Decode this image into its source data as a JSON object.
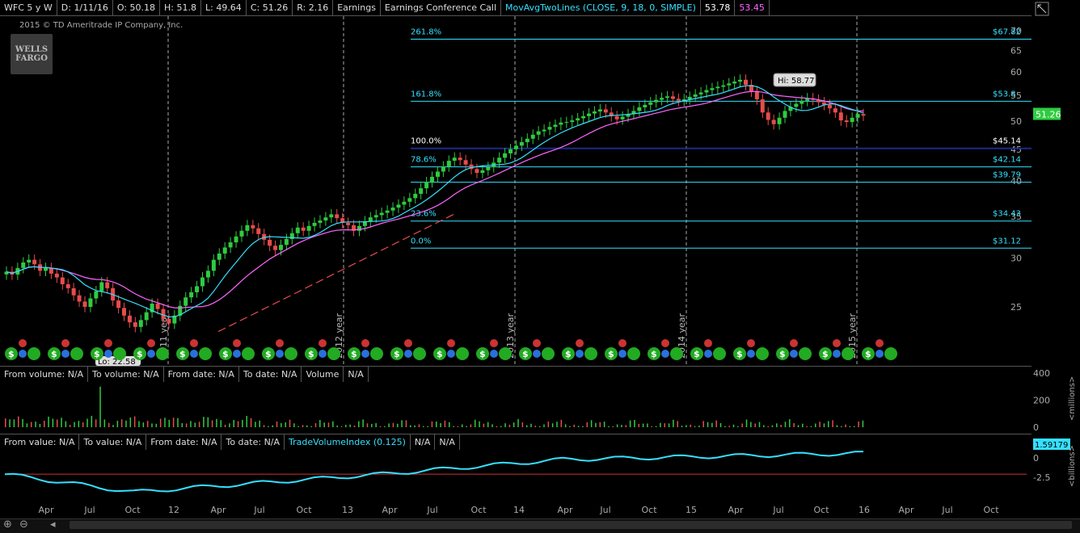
{
  "header": {
    "symbol": "WFC 5 y W",
    "date": "D: 1/11/16",
    "open": "O: 50.18",
    "high": "H: 51.8",
    "low": "L: 49.64",
    "close": "C: 51.26",
    "range": "R: 2.16",
    "earnings": "Earnings",
    "earnings_call": "Earnings Conference Call",
    "study": "MovAvgTwoLines (CLOSE, 9, 18, 0, SIMPLE)",
    "ma_fast": "53.78",
    "ma_slow": "53.45"
  },
  "copyright": "2015 © TD Ameritrade IP Company, Inc.",
  "logo": {
    "line1": "WELLS",
    "line2": "FARGO"
  },
  "volume_header": {
    "from_volume": "From volume: N/A",
    "to_volume": "To volume: N/A",
    "from_date": "From date: N/A",
    "to_date": "To date: N/A",
    "name": "Volume",
    "value": "N/A"
  },
  "tvi_header": {
    "from_value": "From value: N/A",
    "to_value": "To value: N/A",
    "from_date": "From date: N/A",
    "to_date": "To date: N/A",
    "name": "TradeVolumeIndex (0.125)",
    "v1": "N/A",
    "v2": "N/A"
  },
  "volume_unit_label": "<millions>",
  "tvi_unit_label": "<billions>",
  "tvi_last": "1.59179",
  "colors": {
    "background": "#000000",
    "up_candle": "#2ecc40",
    "down_candle": "#e74c4c",
    "ma_fast": "#35e0ff",
    "ma_slow": "#ff66ff",
    "fib": "#35e0ff",
    "fib_100": "#1a2a8a",
    "tvi": "#35e0ff",
    "dividend": "#22aa22",
    "earnings": "#cc3333",
    "call": "#2a6fdb"
  },
  "chart_data": [
    {
      "type": "candlestick",
      "name": "price",
      "x_labels": [
        "Apr",
        "Jul",
        "Oct",
        "12",
        "Apr",
        "Jul",
        "Oct",
        "13",
        "Apr",
        "Jul",
        "Oct",
        "14",
        "Apr",
        "Jul",
        "Oct",
        "15",
        "Apr",
        "Jul",
        "Oct",
        "16",
        "Apr",
        "Jul",
        "Oct"
      ],
      "y_ticks": [
        25,
        30,
        35,
        40,
        45,
        50,
        55,
        60,
        65,
        70
      ],
      "y_scale": "log",
      "last_price": "51.26",
      "high_marker": "Hi: 58.77",
      "low_marker": "Lo: 22.58",
      "year_markers": [
        "2011 year",
        "2012 year",
        "2013 year",
        "2014 year",
        "2015 year"
      ],
      "fibonacci": [
        {
          "pct": "261.8%",
          "price": "$67.82",
          "value": 67.82
        },
        {
          "pct": "161.8%",
          "price": "$53.8",
          "value": 53.8
        },
        {
          "pct": "100.0%",
          "price": "$45.14",
          "value": 45.14
        },
        {
          "pct": "78.6%",
          "price": "$42.14",
          "value": 42.14
        },
        {
          "pct": "",
          "price": "$39.79",
          "value": 39.79
        },
        {
          "pct": "23.6%",
          "price": "$34.43",
          "value": 34.43
        },
        {
          "pct": "0.0%",
          "price": "$31.12",
          "value": 31.12
        }
      ],
      "closes_approx": [
        28.5,
        28.2,
        28.9,
        29.5,
        29.8,
        29.3,
        28.6,
        28.9,
        28.3,
        27.9,
        27.2,
        26.8,
        26.1,
        25.5,
        25.0,
        25.8,
        26.5,
        27.4,
        26.8,
        25.6,
        24.9,
        24.2,
        23.6,
        23.2,
        23.8,
        24.5,
        25.3,
        24.8,
        23.9,
        23.5,
        24.2,
        25.1,
        25.9,
        26.4,
        27.0,
        27.9,
        28.6,
        29.8,
        30.5,
        31.2,
        31.8,
        32.5,
        33.2,
        33.9,
        33.5,
        32.8,
        32.1,
        31.4,
        30.9,
        31.5,
        32.2,
        32.9,
        33.6,
        33.2,
        33.8,
        34.2,
        34.5,
        34.9,
        35.3,
        34.8,
        34.2,
        33.9,
        33.2,
        33.8,
        34.4,
        34.9,
        35.2,
        35.5,
        35.8,
        36.2,
        36.6,
        37.0,
        37.5,
        38.1,
        38.9,
        39.8,
        40.6,
        41.4,
        42.2,
        43.1,
        43.6,
        43.2,
        42.5,
        41.8,
        41.2,
        41.6,
        42.1,
        42.8,
        43.6,
        44.3,
        45.0,
        45.6,
        46.2,
        46.8,
        47.5,
        48.1,
        48.4,
        48.9,
        49.3,
        49.7,
        49.8,
        50.1,
        50.5,
        50.9,
        51.4,
        51.8,
        52.2,
        51.6,
        50.9,
        50.3,
        50.8,
        51.3,
        51.9,
        52.6,
        53.1,
        53.6,
        54.1,
        54.5,
        54.8,
        54.3,
        53.9,
        54.2,
        54.7,
        55.2,
        55.6,
        56.1,
        56.5,
        56.8,
        57.1,
        57.5,
        57.9,
        58.3,
        57.2,
        55.8,
        54.2,
        51.6,
        50.2,
        49.4,
        50.6,
        51.9,
        52.7,
        53.3,
        53.9,
        54.4,
        54.1,
        53.6,
        53.1,
        52.4,
        51.6,
        50.1,
        49.8,
        50.6,
        51.3,
        51.0
      ]
    },
    {
      "type": "bar",
      "name": "volume",
      "y_ticks": [
        0,
        200,
        400
      ],
      "unit": "millions",
      "max_bar_value": 300
    },
    {
      "type": "line",
      "name": "TradeVolumeIndex",
      "y_ticks": [
        0,
        -2.5
      ],
      "unit": "billions",
      "last_value": 1.59179
    }
  ]
}
